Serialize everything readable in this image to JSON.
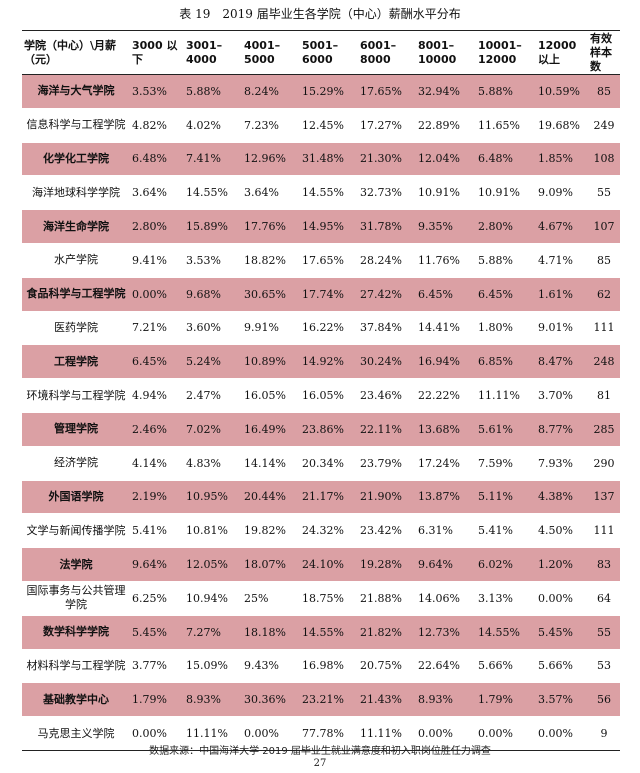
{
  "caption": "表 19　2019 届毕业生各学院（中心）薪酬水平分布",
  "headers": [
    "学院（中心）\\月薪（元）",
    "3000 以下",
    "3001–4000",
    "4001–5000",
    "5001–6000",
    "6001–8000",
    "8001–10000",
    "10001–12000",
    "12000 以上",
    "有效样本数"
  ],
  "rows": [
    {
      "name": "海洋与大气学院",
      "values": [
        "3.53%",
        "5.88%",
        "8.24%",
        "15.29%",
        "17.65%",
        "32.94%",
        "5.88%",
        "10.59%"
      ],
      "count": "85"
    },
    {
      "name": "信息科学与工程学院",
      "values": [
        "4.82%",
        "4.02%",
        "7.23%",
        "12.45%",
        "17.27%",
        "22.89%",
        "11.65%",
        "19.68%"
      ],
      "count": "249"
    },
    {
      "name": "化学化工学院",
      "values": [
        "6.48%",
        "7.41%",
        "12.96%",
        "31.48%",
        "21.30%",
        "12.04%",
        "6.48%",
        "1.85%"
      ],
      "count": "108"
    },
    {
      "name": "海洋地球科学学院",
      "values": [
        "3.64%",
        "14.55%",
        "3.64%",
        "14.55%",
        "32.73%",
        "10.91%",
        "10.91%",
        "9.09%"
      ],
      "count": "55"
    },
    {
      "name": "海洋生命学院",
      "values": [
        "2.80%",
        "15.89%",
        "17.76%",
        "14.95%",
        "31.78%",
        "9.35%",
        "2.80%",
        "4.67%"
      ],
      "count": "107"
    },
    {
      "name": "水产学院",
      "values": [
        "9.41%",
        "3.53%",
        "18.82%",
        "17.65%",
        "28.24%",
        "11.76%",
        "5.88%",
        "4.71%"
      ],
      "count": "85"
    },
    {
      "name": "食品科学与工程学院",
      "values": [
        "0.00%",
        "9.68%",
        "30.65%",
        "17.74%",
        "27.42%",
        "6.45%",
        "6.45%",
        "1.61%"
      ],
      "count": "62"
    },
    {
      "name": "医药学院",
      "values": [
        "7.21%",
        "3.60%",
        "9.91%",
        "16.22%",
        "37.84%",
        "14.41%",
        "1.80%",
        "9.01%"
      ],
      "count": "111"
    },
    {
      "name": "工程学院",
      "values": [
        "6.45%",
        "5.24%",
        "10.89%",
        "14.92%",
        "30.24%",
        "16.94%",
        "6.85%",
        "8.47%"
      ],
      "count": "248"
    },
    {
      "name": "环境科学与工程学院",
      "values": [
        "4.94%",
        "2.47%",
        "16.05%",
        "16.05%",
        "23.46%",
        "22.22%",
        "11.11%",
        "3.70%"
      ],
      "count": "81"
    },
    {
      "name": "管理学院",
      "values": [
        "2.46%",
        "7.02%",
        "16.49%",
        "23.86%",
        "22.11%",
        "13.68%",
        "5.61%",
        "8.77%"
      ],
      "count": "285"
    },
    {
      "name": "经济学院",
      "values": [
        "4.14%",
        "4.83%",
        "14.14%",
        "20.34%",
        "23.79%",
        "17.24%",
        "7.59%",
        "7.93%"
      ],
      "count": "290"
    },
    {
      "name": "外国语学院",
      "values": [
        "2.19%",
        "10.95%",
        "20.44%",
        "21.17%",
        "21.90%",
        "13.87%",
        "5.11%",
        "4.38%"
      ],
      "count": "137"
    },
    {
      "name": "文学与新闻传播学院",
      "values": [
        "5.41%",
        "10.81%",
        "19.82%",
        "24.32%",
        "23.42%",
        "6.31%",
        "5.41%",
        "4.50%"
      ],
      "count": "111"
    },
    {
      "name": "法学院",
      "values": [
        "9.64%",
        "12.05%",
        "18.07%",
        "24.10%",
        "19.28%",
        "9.64%",
        "6.02%",
        "1.20%"
      ],
      "count": "83"
    },
    {
      "name": "国际事务与公共管理学院",
      "values": [
        "6.25%",
        "10.94%",
        "25%",
        "18.75%",
        "21.88%",
        "14.06%",
        "3.13%",
        "0.00%"
      ],
      "count": "64"
    },
    {
      "name": "数学科学学院",
      "values": [
        "5.45%",
        "7.27%",
        "18.18%",
        "14.55%",
        "21.82%",
        "12.73%",
        "14.55%",
        "5.45%"
      ],
      "count": "55"
    },
    {
      "name": "材料科学与工程学院",
      "values": [
        "3.77%",
        "15.09%",
        "9.43%",
        "16.98%",
        "20.75%",
        "22.64%",
        "5.66%",
        "5.66%"
      ],
      "count": "53"
    },
    {
      "name": "基础教学中心",
      "values": [
        "1.79%",
        "8.93%",
        "30.36%",
        "23.21%",
        "21.43%",
        "8.93%",
        "1.79%",
        "3.57%"
      ],
      "count": "56"
    },
    {
      "name": "马克思主义学院",
      "values": [
        "0.00%",
        "11.11%",
        "0.00%",
        "77.78%",
        "11.11%",
        "0.00%",
        "0.00%",
        "0.00%"
      ],
      "count": "9"
    }
  ],
  "source": "数据来源：中国海洋大学 2019 届毕业生就业满意度和初入职岗位胜任力调查",
  "page_number": "27",
  "colors": {
    "row_shade": "#dba0a4"
  }
}
